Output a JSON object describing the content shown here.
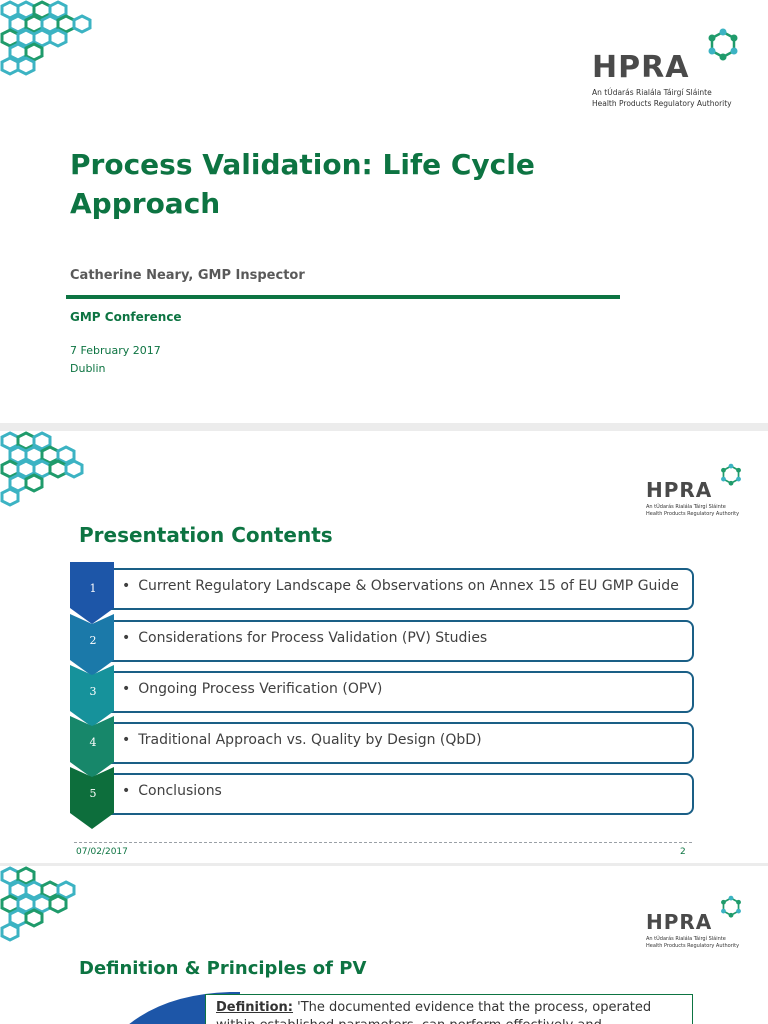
{
  "logo": {
    "word": "HPRA",
    "sub_irish": "An tÚdarás Rialála Táirgí Sláinte",
    "sub_english": "Health Products Regulatory Authority"
  },
  "slide1": {
    "title": "Process Validation: Life Cycle Approach",
    "author": "Catherine Neary, GMP Inspector",
    "conference": "GMP Conference",
    "date": "7 February 2017",
    "city": "Dublin"
  },
  "slide2": {
    "title": "Presentation Contents",
    "items": [
      {
        "num": "1",
        "text": "Current Regulatory Landscape & Observations on Annex 15 of EU GMP Guide",
        "color": "#1d56a8"
      },
      {
        "num": "2",
        "text": "Considerations for Process Validation (PV) Studies",
        "color": "#1b79a9"
      },
      {
        "num": "3",
        "text": "Ongoing Process Verification (OPV)",
        "color": "#16929b"
      },
      {
        "num": "4",
        "text": "Traditional Approach vs. Quality by Design (QbD)",
        "color": "#17876a"
      },
      {
        "num": "5",
        "text": "Conclusions",
        "color": "#0d6e3c"
      }
    ],
    "bullet": "•",
    "footer_date": "07/02/2017",
    "footer_page": "2"
  },
  "slide3": {
    "title": "Definition & Principles of PV",
    "definition_label": "Definition:",
    "definition_text": " 'The documented evidence that the process, operated within established parameters, can perform effectively and reproducibly to"
  },
  "colors": {
    "brand_green": "#0d7442",
    "box_border": "#1a5f86",
    "hex_teal": "#3cb3c3",
    "hex_green": "#1f9b6b"
  },
  "icons": [
    "hex-pattern-icon",
    "hpra-molecule-icon",
    "chevron-icon"
  ]
}
